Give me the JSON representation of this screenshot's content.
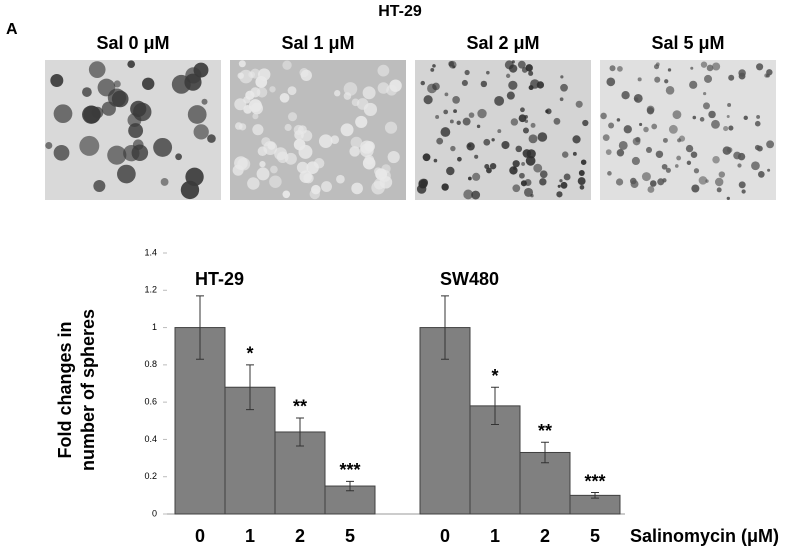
{
  "panel_label": "A",
  "header": "HT-29",
  "images": [
    {
      "label": "Sal 0 μM"
    },
    {
      "label": "Sal 1 μM"
    },
    {
      "label": "Sal 2 μM"
    },
    {
      "label": "Sal 5 μM"
    }
  ],
  "chart_data": {
    "type": "bar",
    "ylabel": [
      "Fold changes in",
      "number of spheres"
    ],
    "xlabel": "Salinomycin (μM)",
    "color": "#808080",
    "ylim": [
      0,
      1.4
    ],
    "yticks": [
      0,
      0.2,
      0.4,
      0.6,
      0.8,
      1,
      1.2,
      1.4
    ],
    "groups": [
      {
        "name": "HT-29",
        "categories": [
          "0",
          "1",
          "2",
          "5"
        ],
        "values": [
          1,
          0.68,
          0.44,
          0.15
        ],
        "errors": [
          0.17,
          0.12,
          0.075,
          0.025
        ],
        "annotations": [
          null,
          "*",
          "**",
          "***"
        ]
      },
      {
        "name": "SW480",
        "categories": [
          "0",
          "1",
          "2",
          "5"
        ],
        "values": [
          1,
          0.58,
          0.33,
          0.1
        ],
        "errors": [
          0.17,
          0.1,
          0.055,
          0.015
        ],
        "annotations": [
          null,
          "*",
          "**",
          "***"
        ]
      }
    ]
  }
}
